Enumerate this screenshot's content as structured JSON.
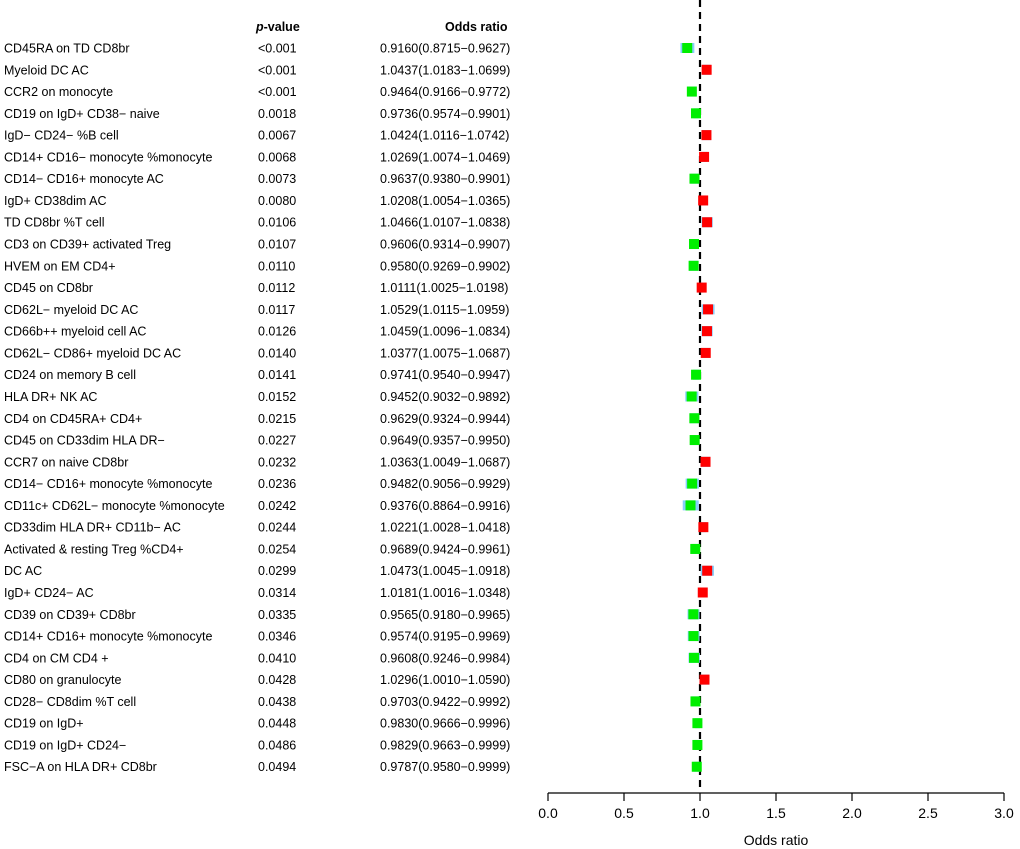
{
  "chart_data": {
    "type": "forest",
    "headers": {
      "pvalue_prefix": "p",
      "pvalue_suffix": "-value",
      "or": "Odds ratio"
    },
    "xlabel": "Odds ratio",
    "xlim": [
      0.0,
      3.0
    ],
    "xticks": [
      "0.0",
      "0.5",
      "1.0",
      "1.5",
      "2.0",
      "2.5",
      "3.0"
    ],
    "reference_line": 1.0,
    "colors": {
      "up": "#ff0000",
      "down": "#00ee00",
      "ci": "#87cefa",
      "ref": "#000000"
    },
    "rows": [
      {
        "label": "CD45RA on TD CD8br",
        "p": "<0.001",
        "or_text": "0.9160(0.8715−0.9627)",
        "or": 0.916,
        "lo": 0.8715,
        "hi": 0.9627
      },
      {
        "label": "Myeloid DC AC",
        "p": "<0.001",
        "or_text": "1.0437(1.0183−1.0699)",
        "or": 1.0437,
        "lo": 1.0183,
        "hi": 1.0699
      },
      {
        "label": "CCR2 on monocyte",
        "p": "<0.001",
        "or_text": "0.9464(0.9166−0.9772)",
        "or": 0.9464,
        "lo": 0.9166,
        "hi": 0.9772
      },
      {
        "label": "CD19 on IgD+ CD38− naive",
        "p": "0.0018",
        "or_text": "0.9736(0.9574−0.9901)",
        "or": 0.9736,
        "lo": 0.9574,
        "hi": 0.9901
      },
      {
        "label": "IgD− CD24− %B cell",
        "p": "0.0067",
        "or_text": "1.0424(1.0116−1.0742)",
        "or": 1.0424,
        "lo": 1.0116,
        "hi": 1.0742
      },
      {
        "label": "CD14+ CD16− monocyte %monocyte",
        "p": "0.0068",
        "or_text": "1.0269(1.0074−1.0469)",
        "or": 1.0269,
        "lo": 1.0074,
        "hi": 1.0469
      },
      {
        "label": "CD14− CD16+ monocyte AC",
        "p": "0.0073",
        "or_text": "0.9637(0.9380−0.9901)",
        "or": 0.9637,
        "lo": 0.938,
        "hi": 0.9901
      },
      {
        "label": "IgD+ CD38dim AC",
        "p": "0.0080",
        "or_text": "1.0208(1.0054−1.0365)",
        "or": 1.0208,
        "lo": 1.0054,
        "hi": 1.0365
      },
      {
        "label": "TD CD8br %T cell",
        "p": "0.0106",
        "or_text": "1.0466(1.0107−1.0838)",
        "or": 1.0466,
        "lo": 1.0107,
        "hi": 1.0838
      },
      {
        "label": "CD3 on CD39+ activated Treg",
        "p": "0.0107",
        "or_text": "0.9606(0.9314−0.9907)",
        "or": 0.9606,
        "lo": 0.9314,
        "hi": 0.9907
      },
      {
        "label": "HVEM on EM CD4+",
        "p": "0.0110",
        "or_text": "0.9580(0.9269−0.9902)",
        "or": 0.958,
        "lo": 0.9269,
        "hi": 0.9902
      },
      {
        "label": "CD45 on CD8br",
        "p": "0.0112",
        "or_text": "1.0111(1.0025−1.0198)",
        "or": 1.0111,
        "lo": 1.0025,
        "hi": 1.0198
      },
      {
        "label": "CD62L− myeloid DC AC",
        "p": "0.0117",
        "or_text": "1.0529(1.0115−1.0959)",
        "or": 1.0529,
        "lo": 1.0115,
        "hi": 1.0959
      },
      {
        "label": "CD66b++ myeloid cell AC",
        "p": "0.0126",
        "or_text": "1.0459(1.0096−1.0834)",
        "or": 1.0459,
        "lo": 1.0096,
        "hi": 1.0834
      },
      {
        "label": "CD62L− CD86+ myeloid DC AC",
        "p": "0.0140",
        "or_text": "1.0377(1.0075−1.0687)",
        "or": 1.0377,
        "lo": 1.0075,
        "hi": 1.0687
      },
      {
        "label": "CD24 on memory B cell",
        "p": "0.0141",
        "or_text": "0.9741(0.9540−0.9947)",
        "or": 0.9741,
        "lo": 0.954,
        "hi": 0.9947
      },
      {
        "label": "HLA DR+ NK AC",
        "p": "0.0152",
        "or_text": "0.9452(0.9032−0.9892)",
        "or": 0.9452,
        "lo": 0.9032,
        "hi": 0.9892
      },
      {
        "label": "CD4 on CD45RA+ CD4+",
        "p": "0.0215",
        "or_text": "0.9629(0.9324−0.9944)",
        "or": 0.9629,
        "lo": 0.9324,
        "hi": 0.9944
      },
      {
        "label": "CD45 on CD33dim HLA DR−",
        "p": "0.0227",
        "or_text": "0.9649(0.9357−0.9950)",
        "or": 0.9649,
        "lo": 0.9357,
        "hi": 0.995
      },
      {
        "label": "CCR7 on naive CD8br",
        "p": "0.0232",
        "or_text": "1.0363(1.0049−1.0687)",
        "or": 1.0363,
        "lo": 1.0049,
        "hi": 1.0687
      },
      {
        "label": "CD14− CD16+ monocyte %monocyte",
        "p": "0.0236",
        "or_text": "0.9482(0.9056−0.9929)",
        "or": 0.9482,
        "lo": 0.9056,
        "hi": 0.9929
      },
      {
        "label": "CD11c+ CD62L− monocyte %monocyte",
        "p": "0.0242",
        "or_text": "0.9376(0.8864−0.9916)",
        "or": 0.9376,
        "lo": 0.8864,
        "hi": 0.9916
      },
      {
        "label": "CD33dim HLA DR+ CD11b− AC",
        "p": "0.0244",
        "or_text": "1.0221(1.0028−1.0418)",
        "or": 1.0221,
        "lo": 1.0028,
        "hi": 1.0418
      },
      {
        "label": "Activated & resting Treg %CD4+",
        "p": "0.0254",
        "or_text": "0.9689(0.9424−0.9961)",
        "or": 0.9689,
        "lo": 0.9424,
        "hi": 0.9961
      },
      {
        "label": "DC AC",
        "p": "0.0299",
        "or_text": "1.0473(1.0045−1.0918)",
        "or": 1.0473,
        "lo": 1.0045,
        "hi": 1.0918
      },
      {
        "label": "IgD+ CD24− AC",
        "p": "0.0314",
        "or_text": "1.0181(1.0016−1.0348)",
        "or": 1.0181,
        "lo": 1.0016,
        "hi": 1.0348
      },
      {
        "label": "CD39 on CD39+ CD8br",
        "p": "0.0335",
        "or_text": "0.9565(0.9180−0.9965)",
        "or": 0.9565,
        "lo": 0.918,
        "hi": 0.9965
      },
      {
        "label": "CD14+ CD16+ monocyte %monocyte",
        "p": "0.0346",
        "or_text": "0.9574(0.9195−0.9969)",
        "or": 0.9574,
        "lo": 0.9195,
        "hi": 0.9969
      },
      {
        "label": "CD4 on CM CD4 +",
        "p": "0.0410",
        "or_text": "0.9608(0.9246−0.9984)",
        "or": 0.9608,
        "lo": 0.9246,
        "hi": 0.9984
      },
      {
        "label": "CD80 on granulocyte",
        "p": "0.0428",
        "or_text": "1.0296(1.0010−1.0590)",
        "or": 1.0296,
        "lo": 1.001,
        "hi": 1.059
      },
      {
        "label": "CD28− CD8dim %T cell",
        "p": "0.0438",
        "or_text": "0.9703(0.9422−0.9992)",
        "or": 0.9703,
        "lo": 0.9422,
        "hi": 0.9992
      },
      {
        "label": "CD19 on IgD+",
        "p": "0.0448",
        "or_text": "0.9830(0.9666−0.9996)",
        "or": 0.983,
        "lo": 0.9666,
        "hi": 0.9996
      },
      {
        "label": "CD19 on IgD+ CD24−",
        "p": "0.0486",
        "or_text": "0.9829(0.9663−0.9999)",
        "or": 0.9829,
        "lo": 0.9663,
        "hi": 0.9999
      },
      {
        "label": "FSC−A on HLA DR+ CD8br",
        "p": "0.0494",
        "or_text": "0.9787(0.9580−0.9999)",
        "or": 0.9787,
        "lo": 0.958,
        "hi": 0.9999
      }
    ]
  }
}
